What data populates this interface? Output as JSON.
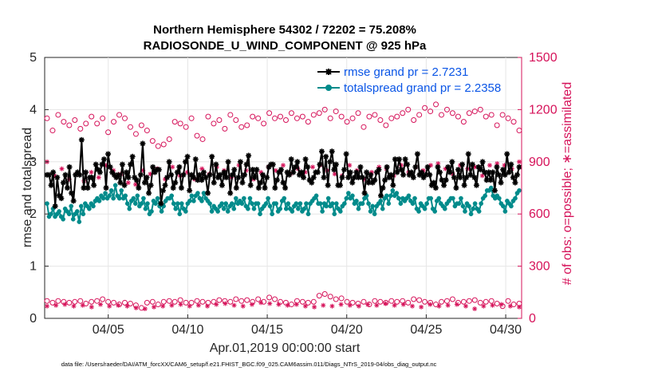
{
  "chart_data": {
    "type": "line",
    "title": "Northern Hemisphere 54302 / 72202 = 75.208%",
    "subtitle": "RADIOSONDE_U_WIND_COMPONENT @ 925 hPa",
    "xlabel": "Apr.01,2019 00:00:00 start",
    "ylabel": "rmse and totalspread",
    "ylabel_right": "# of obs: o=possible; ∗=assimilated",
    "xlim": [
      1,
      31
    ],
    "ylim": [
      0,
      5
    ],
    "ylim_right": [
      0,
      1500
    ],
    "x_ticks": [
      5,
      10,
      15,
      20,
      25,
      30
    ],
    "x_tick_labels": [
      "04/05",
      "04/10",
      "04/15",
      "04/20",
      "04/25",
      "04/30"
    ],
    "y_ticks": [
      0,
      1,
      2,
      3,
      4,
      5
    ],
    "y_tick_labels": [
      "0",
      "1",
      "2",
      "3",
      "4",
      "5"
    ],
    "y_right_ticks": [
      0,
      300,
      600,
      900,
      1200,
      1500
    ],
    "y_right_tick_labels": [
      "0",
      "300",
      "600",
      "900",
      "1200",
      "1500"
    ],
    "legend_position": "top-right",
    "series": [
      {
        "name": "rmse grand pr = 2.7231",
        "color": "#000000",
        "marker": "asterisk",
        "values": [
          2.75,
          2.75,
          2.55,
          2.8,
          2.15,
          2.7,
          2.35,
          2.3,
          2.6,
          2.75,
          2.5,
          2.9,
          2.4,
          2.25,
          2.75,
          2.8,
          2.75,
          3.42,
          2.5,
          2.8,
          2.5,
          2.7,
          2.7,
          2.55,
          2.95,
          2.85,
          2.8,
          2.95,
          3.05,
          2.5,
          3.15,
          2.9,
          2.8,
          2.75,
          2.7,
          2.75,
          2.6,
          2.95,
          2.55,
          2.8,
          2.7,
          2.95,
          3.1,
          2.7,
          2.65,
          2.5,
          2.75,
          3.35,
          2.6,
          2.7,
          2.4,
          2.55,
          2.9,
          2.8,
          2.85,
          2.85,
          2.2,
          2.45,
          2.55,
          2.7,
          3.0,
          2.75,
          2.5,
          2.6,
          2.8,
          2.9,
          2.5,
          2.75,
          3.0,
          3.1,
          2.45,
          2.75,
          2.7,
          3.05,
          2.65,
          2.75,
          2.65,
          2.8,
          2.7,
          2.4,
          2.75,
          3.1,
          2.6,
          2.95,
          2.7,
          2.75,
          2.55,
          2.8,
          2.7,
          3.0,
          2.4,
          2.75,
          2.85,
          2.5,
          2.7,
          3.0,
          2.6,
          2.75,
          2.95,
          3.12,
          2.55,
          2.85,
          2.7,
          2.85,
          2.5,
          2.6,
          2.75,
          2.5,
          2.7,
          2.9,
          2.95,
          2.95,
          2.5,
          2.65,
          2.8,
          2.85,
          2.6,
          2.5,
          2.8,
          2.75,
          3.05,
          2.8,
          2.9,
          3.0,
          2.75,
          2.8,
          2.7,
          3.05,
          2.9,
          2.65,
          2.6,
          2.7,
          2.8,
          2.8,
          2.95,
          3.2,
          2.7,
          3.1,
          2.55,
          3.0,
          3.2,
          2.85,
          2.95,
          2.55,
          2.55,
          2.7,
          2.85,
          3.15,
          2.7,
          2.8,
          2.6,
          2.7,
          2.8,
          2.7,
          2.9,
          2.7,
          2.4,
          2.8,
          2.6,
          2.75,
          2.6,
          2.65,
          2.8,
          2.85,
          2.35,
          2.5,
          2.65,
          2.9,
          2.7,
          2.75,
          2.55,
          3.05,
          2.8,
          3.05,
          2.85,
          2.75,
          3.05,
          2.95,
          2.75,
          2.8,
          2.7,
          2.9,
          3.15,
          2.75,
          2.8,
          2.7,
          2.75,
          2.9,
          2.75,
          2.55,
          2.6,
          2.5,
          2.9,
          2.8,
          2.65,
          2.55,
          2.65,
          2.9,
          2.8,
          3.0,
          2.7,
          2.5,
          2.85,
          2.7,
          2.95,
          2.55,
          2.7,
          3.15,
          2.75,
          2.95,
          2.7,
          2.55,
          2.9,
          2.85,
          3.0,
          2.8,
          2.65,
          2.8,
          2.65,
          2.8,
          2.45,
          2.9,
          2.75,
          2.6,
          2.85,
          2.75,
          3.15,
          2.8,
          2.95,
          2.7,
          2.6,
          2.75,
          2.9
        ]
      },
      {
        "name": "totalspread grand pr = 2.2358",
        "color": "#008b8b",
        "marker": "circle",
        "values": [
          2.2,
          1.95,
          2.0,
          2.1,
          1.95,
          2.0,
          2.05,
          1.95,
          1.9,
          2.1,
          2.05,
          2.0,
          2.15,
          1.9,
          2.0,
          2.05,
          1.85,
          2.15,
          2.0,
          2.2,
          2.15,
          2.1,
          2.2,
          2.15,
          2.25,
          2.3,
          2.25,
          2.35,
          2.3,
          2.4,
          2.3,
          2.35,
          2.45,
          2.3,
          2.55,
          2.35,
          2.3,
          2.45,
          2.3,
          2.35,
          2.2,
          2.1,
          2.25,
          2.3,
          2.2,
          2.35,
          2.15,
          2.2,
          2.3,
          2.1,
          2.2,
          2.0,
          2.05,
          2.25,
          2.2,
          2.3,
          2.15,
          2.05,
          2.15,
          2.25,
          2.3,
          2.3,
          2.35,
          2.2,
          2.1,
          2.2,
          2.0,
          2.2,
          2.1,
          2.05,
          2.2,
          2.25,
          2.35,
          2.25,
          2.35,
          2.4,
          2.3,
          2.25,
          2.4,
          2.3,
          2.25,
          2.2,
          2.05,
          2.15,
          2.1,
          2.05,
          2.15,
          2.2,
          2.1,
          2.2,
          2.05,
          2.15,
          2.2,
          2.1,
          2.3,
          2.2,
          2.25,
          2.2,
          2.3,
          2.15,
          2.1,
          2.3,
          2.2,
          2.1,
          2.2,
          2.2,
          2.0,
          2.1,
          2.15,
          2.2,
          2.3,
          2.15,
          2.0,
          2.2,
          2.2,
          2.05,
          2.1,
          2.25,
          2.3,
          2.1,
          2.2,
          2.1,
          2.05,
          2.15,
          2.2,
          2.1,
          2.2,
          2.05,
          2.1,
          2.2,
          2.0,
          2.2,
          2.25,
          2.3,
          2.35,
          2.2,
          2.2,
          2.05,
          2.2,
          2.15,
          2.3,
          2.15,
          2.2,
          2.0,
          2.2,
          2.1,
          2.05,
          2.15,
          2.2,
          2.3,
          2.4,
          2.3,
          2.35,
          2.2,
          2.25,
          2.1,
          2.2,
          2.2,
          2.3,
          2.35,
          2.2,
          2.05,
          2.15,
          2.0,
          2.15,
          2.2,
          2.25,
          2.1,
          2.3,
          2.35,
          2.2,
          2.35,
          2.45,
          2.35,
          2.4,
          2.3,
          2.2,
          2.3,
          2.25,
          2.3,
          2.35,
          2.25,
          2.2,
          2.3,
          2.1,
          2.05,
          2.2,
          2.15,
          2.1,
          2.2,
          2.3,
          2.3,
          2.1,
          2.05,
          2.25,
          2.3,
          2.2,
          2.15,
          2.1,
          2.2,
          2.25,
          2.3,
          2.3,
          2.15,
          2.2,
          2.2,
          2.3,
          2.15,
          2.05,
          2.2,
          2.15,
          2.0,
          2.1,
          2.2,
          2.1,
          2.05,
          2.2,
          2.3,
          2.35,
          2.45,
          2.45,
          2.5,
          2.35,
          2.3,
          2.35,
          2.3,
          2.2,
          2.15,
          2.05,
          2.25,
          2.2,
          2.15,
          2.25,
          2.3,
          2.4,
          2.45
        ]
      }
    ],
    "obs_possible_high": [
      1150,
      1080,
      1170,
      1130,
      1110,
      1140,
      1090,
      1120,
      1160,
      1120,
      1150,
      1070,
      1130,
      1170,
      1150,
      1100,
      1060,
      1110,
      1080,
      1020,
      990,
      1000,
      1030,
      1130,
      1120,
      1100,
      1150,
      1050,
      1030,
      1160,
      1120,
      1140,
      1090,
      1170,
      1140,
      1100,
      1110,
      1160,
      1150,
      1120,
      1180,
      1150,
      1160,
      1140,
      1180,
      1150,
      1160,
      1130,
      1170,
      1180,
      1200,
      1150,
      1190,
      1160,
      1130,
      1150,
      1180,
      1100,
      1160,
      1170,
      1140,
      1110,
      1150,
      1160,
      1180,
      1200,
      1140,
      1170,
      1210,
      1190,
      1230,
      1170,
      1200,
      1180,
      1160,
      1130,
      1180,
      1190,
      1200,
      1160,
      1170,
      1110,
      1170,
      1150,
      1130,
      1080
    ],
    "obs_possible_low": [
      100,
      90,
      100,
      95,
      90,
      95,
      100,
      85,
      95,
      100,
      110,
      95,
      90,
      80,
      90,
      85,
      75,
      60,
      90,
      95,
      80,
      95,
      100,
      95,
      105,
      90,
      90,
      100,
      95,
      90,
      95,
      105,
      100,
      95,
      110,
      100,
      105,
      95,
      110,
      95,
      120,
      110,
      95,
      90,
      80,
      100,
      95,
      90,
      95,
      130,
      140,
      125,
      110,
      115,
      95,
      90,
      85,
      95,
      80,
      100,
      95,
      90,
      100,
      95,
      100,
      90,
      110,
      105,
      95,
      90,
      80,
      95,
      100,
      110,
      90,
      95,
      100,
      105,
      90,
      95,
      100,
      85,
      70,
      100,
      80,
      85
    ],
    "obs_assimilated_high": [
      900,
      820,
      860,
      800,
      830,
      790,
      840,
      810,
      880,
      850,
      830,
      780,
      770,
      850,
      830,
      860,
      800,
      870,
      820,
      840,
      800,
      860,
      830,
      870,
      850,
      810,
      880,
      850,
      800,
      840,
      870,
      850,
      880,
      830,
      860,
      840,
      870,
      880,
      850,
      830,
      820,
      880,
      850,
      800,
      840,
      870,
      860,
      820,
      880,
      840,
      870,
      850,
      880,
      890,
      860,
      830,
      880,
      860,
      870,
      820,
      880,
      890,
      880,
      860,
      900
    ],
    "obs_assimilated_low": [
      70,
      75,
      80,
      70,
      75,
      65,
      80,
      70,
      75,
      70,
      60,
      55,
      65,
      70,
      75,
      80,
      70,
      75,
      70,
      80,
      85,
      75,
      70,
      80,
      90,
      85,
      80,
      75,
      80,
      70,
      65,
      75,
      70,
      80,
      75,
      70,
      80,
      75,
      85,
      75,
      80,
      70,
      65,
      80,
      70,
      75,
      80,
      70,
      55,
      70,
      75,
      80,
      70,
      65
    ]
  },
  "footnote": "data file: /Users/raeder/DAI/ATM_forcXX/CAM6_setup/f.e21.FHIST_BGC.f09_025.CAM6assim.011/Diags_NTrS_2019-04/obs_diag_output.nc",
  "colors": {
    "rmse": "#000000",
    "spread": "#008b8b",
    "obs": "#d6135a",
    "legend_text": "#0a55e6",
    "axis": "#262626"
  }
}
